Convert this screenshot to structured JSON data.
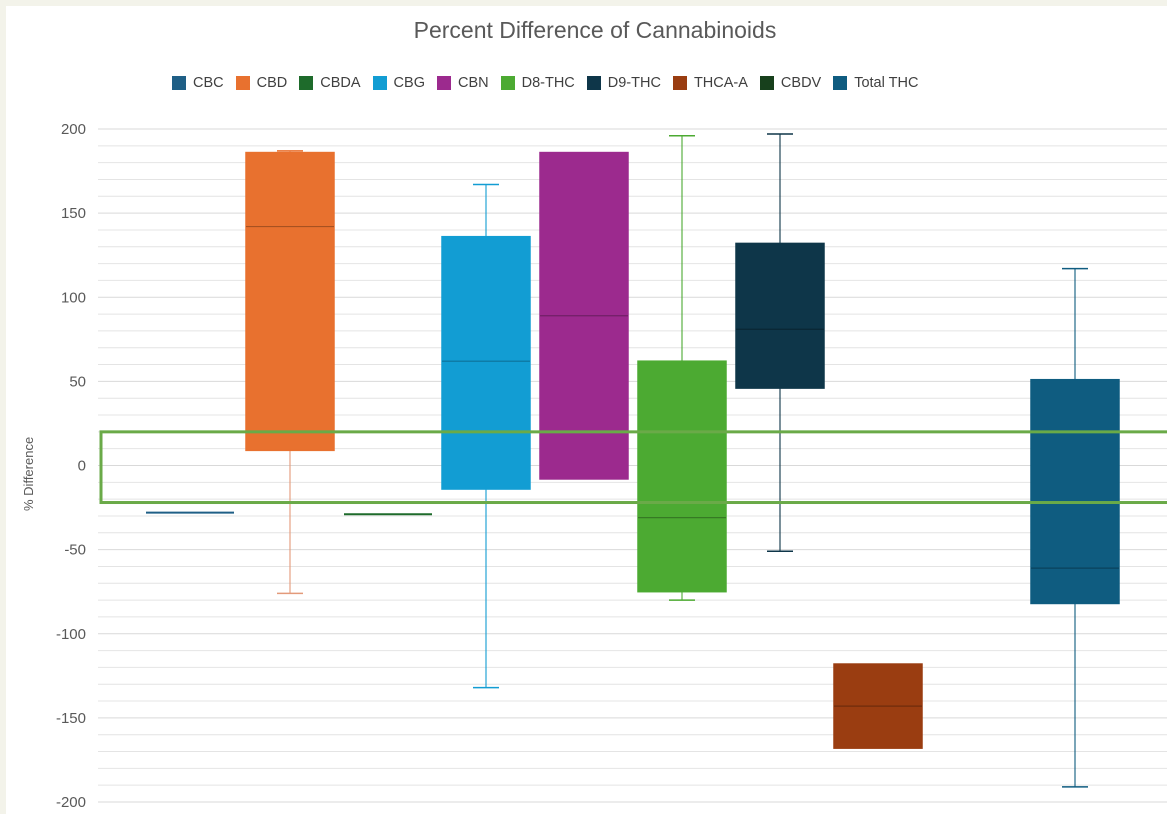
{
  "chart_data": {
    "type": "boxplot",
    "title": "Percent Difference of Cannabinoids",
    "ylabel": "% Difference",
    "xlabel": "",
    "ylim": [
      -200,
      200
    ],
    "yticks": [
      200,
      150,
      100,
      50,
      0,
      -50,
      -100,
      -150,
      -200
    ],
    "grid": true,
    "legend_position": "top",
    "series": [
      {
        "name": "CBC",
        "color": "#1f5f86",
        "min": -28,
        "q1": -28,
        "median": -28,
        "q3": -28,
        "max": -28
      },
      {
        "name": "CBD",
        "color": "#e8712f",
        "min": -76,
        "q1": 9,
        "median": 142,
        "q3": 186,
        "max": 187
      },
      {
        "name": "CBDA",
        "color": "#1e6b2b",
        "min": -29,
        "q1": -29,
        "median": -29,
        "q3": -29,
        "max": -29
      },
      {
        "name": "CBG",
        "color": "#129dd3",
        "min": -132,
        "q1": -14,
        "median": 62,
        "q3": 136,
        "max": 167
      },
      {
        "name": "CBN",
        "color": "#9c2a8e",
        "min": -8,
        "q1": -8,
        "median": 89,
        "q3": 186,
        "max": 186
      },
      {
        "name": "D8-THC",
        "color": "#4caa32",
        "min": -80,
        "q1": -75,
        "median": -31,
        "q3": 62,
        "max": 196
      },
      {
        "name": "D9-THC",
        "color": "#0e3649",
        "min": -51,
        "q1": 46,
        "median": 81,
        "q3": 132,
        "max": 197
      },
      {
        "name": "THCA-A",
        "color": "#9a3d11",
        "min": -168,
        "q1": -168,
        "median": -143,
        "q3": -118,
        "max": -118
      },
      {
        "name": "CBDV",
        "color": "#17401c",
        "min": null,
        "q1": null,
        "median": null,
        "q3": null,
        "max": null
      },
      {
        "name": "Total THC",
        "color": "#0f5c80",
        "min": -191,
        "q1": -82,
        "median": -61,
        "q3": 51,
        "max": 117
      }
    ],
    "annotation": {
      "type": "rectangle-band",
      "y_top": 20,
      "y_bottom": -22,
      "color": "#6aaa48"
    }
  }
}
